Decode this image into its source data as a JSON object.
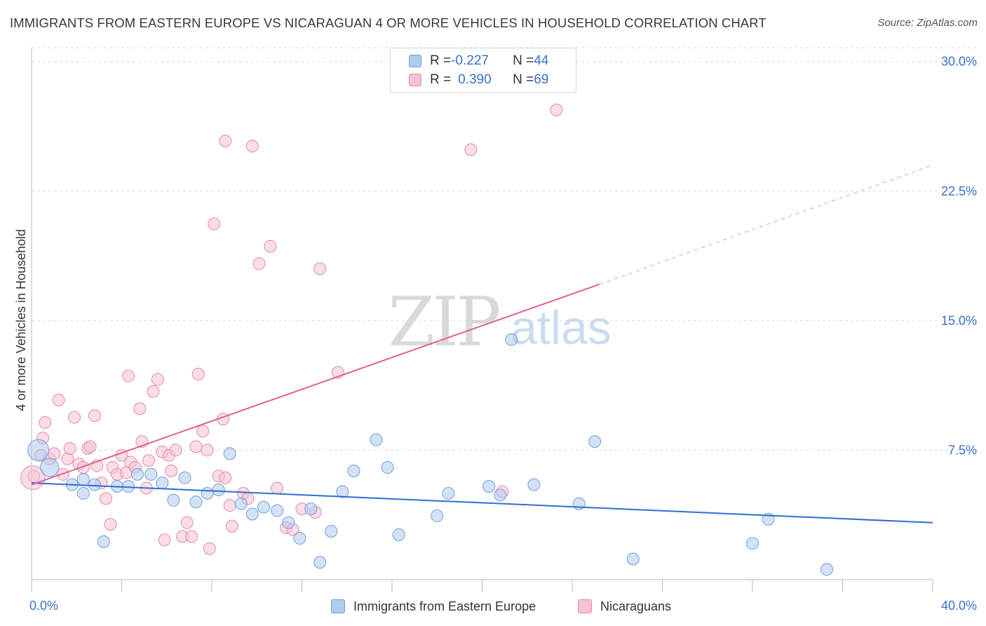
{
  "header": {
    "title": "IMMIGRANTS FROM EASTERN EUROPE VS NICARAGUAN 4 OR MORE VEHICLES IN HOUSEHOLD CORRELATION CHART",
    "source": "Source: ZipAtlas.com"
  },
  "watermark": {
    "zip": "ZIP",
    "atlas": "atlas"
  },
  "colors": {
    "blue_fill": "#aecbf0",
    "blue_stroke": "#6f9fdc",
    "blue_line": "#2f6fcc",
    "pink_fill": "#f7c1d1",
    "pink_stroke": "#e48aa8",
    "pink_line": "#e0618e",
    "tick_label": "#3a72c9",
    "grid": "#dcdcdc"
  },
  "legend": {
    "rows": [
      {
        "r_label": "R = ",
        "r_value": "-0.227",
        "n_label": "N = ",
        "n_value": "44"
      },
      {
        "r_label": "R = ",
        "r_value": "0.390",
        "n_label": "N = ",
        "n_value": "69"
      }
    ]
  },
  "chart_data": {
    "type": "scatter",
    "title": "IMMIGRANTS FROM EASTERN EUROPE VS NICARAGUAN 4 OR MORE VEHICLES IN HOUSEHOLD CORRELATION CHART",
    "xlabel": "",
    "ylabel": "4 or more Vehicles in Household",
    "xlim": [
      0,
      40
    ],
    "ylim": [
      0,
      30.8
    ],
    "x_tick_labels": [
      "0.0%",
      "40.0%"
    ],
    "y_ticks": [
      7.5,
      15.0,
      22.5,
      30.0
    ],
    "y_tick_labels": [
      "7.5%",
      "15.0%",
      "22.5%",
      "30.0%"
    ],
    "grid": true,
    "legend_position": "top-center",
    "series": [
      {
        "name": "Immigrants from Eastern Europe",
        "R": -0.227,
        "N": 44,
        "trend": {
          "x0": 0,
          "y0": 5.6,
          "x1": 40,
          "y1": 3.3
        },
        "points": [
          [
            0.3,
            7.5
          ],
          [
            0.8,
            6.5
          ],
          [
            2.3,
            5.8
          ],
          [
            1.8,
            5.5
          ],
          [
            2.3,
            5.0
          ],
          [
            3.2,
            2.2
          ],
          [
            2.8,
            5.5
          ],
          [
            3.8,
            5.4
          ],
          [
            4.3,
            5.4
          ],
          [
            4.7,
            6.1
          ],
          [
            5.3,
            6.1
          ],
          [
            5.8,
            5.6
          ],
          [
            6.3,
            4.6
          ],
          [
            6.8,
            5.9
          ],
          [
            7.3,
            4.5
          ],
          [
            7.8,
            5.0
          ],
          [
            8.3,
            5.2
          ],
          [
            8.8,
            7.3
          ],
          [
            9.3,
            4.4
          ],
          [
            9.8,
            3.8
          ],
          [
            10.3,
            4.2
          ],
          [
            10.9,
            4.0
          ],
          [
            11.4,
            3.3
          ],
          [
            11.9,
            2.4
          ],
          [
            12.4,
            4.1
          ],
          [
            12.8,
            1.0
          ],
          [
            13.3,
            2.8
          ],
          [
            13.8,
            5.1
          ],
          [
            14.3,
            6.3
          ],
          [
            15.3,
            8.1
          ],
          [
            15.8,
            6.5
          ],
          [
            16.3,
            2.6
          ],
          [
            18.0,
            3.7
          ],
          [
            18.5,
            5.0
          ],
          [
            20.3,
            5.4
          ],
          [
            20.8,
            4.9
          ],
          [
            21.3,
            13.9
          ],
          [
            22.3,
            5.5
          ],
          [
            24.3,
            4.4
          ],
          [
            25.0,
            8.0
          ],
          [
            26.7,
            1.2
          ],
          [
            32.0,
            2.1
          ],
          [
            32.7,
            3.5
          ],
          [
            35.3,
            0.6
          ]
        ]
      },
      {
        "name": "Nicaraguans",
        "R": 0.39,
        "N": 69,
        "trend": {
          "x0": 0,
          "y0": 5.5,
          "x1": 25.2,
          "y1": 17.1
        },
        "trend_extension": {
          "x0": 25.2,
          "y0": 17.1,
          "x1": 40,
          "y1": 24.0
        },
        "points": [
          [
            0.1,
            6.0
          ],
          [
            0.4,
            7.2
          ],
          [
            0.5,
            8.2
          ],
          [
            0.6,
            9.1
          ],
          [
            0.8,
            7.0
          ],
          [
            1.0,
            7.3
          ],
          [
            1.2,
            10.4
          ],
          [
            1.4,
            6.1
          ],
          [
            1.6,
            7.0
          ],
          [
            1.7,
            7.6
          ],
          [
            1.9,
            9.4
          ],
          [
            2.1,
            6.7
          ],
          [
            2.3,
            6.5
          ],
          [
            2.5,
            7.6
          ],
          [
            2.6,
            7.7
          ],
          [
            2.8,
            9.5
          ],
          [
            2.9,
            6.6
          ],
          [
            3.1,
            5.6
          ],
          [
            3.3,
            4.7
          ],
          [
            3.5,
            3.2
          ],
          [
            3.6,
            6.5
          ],
          [
            3.8,
            6.1
          ],
          [
            4.0,
            7.2
          ],
          [
            4.2,
            6.2
          ],
          [
            4.3,
            11.8
          ],
          [
            4.4,
            6.8
          ],
          [
            4.6,
            6.5
          ],
          [
            4.8,
            9.9
          ],
          [
            4.9,
            8.0
          ],
          [
            5.1,
            5.3
          ],
          [
            5.2,
            6.9
          ],
          [
            5.4,
            10.9
          ],
          [
            5.6,
            11.6
          ],
          [
            5.8,
            7.4
          ],
          [
            5.9,
            2.3
          ],
          [
            6.1,
            7.2
          ],
          [
            6.2,
            6.3
          ],
          [
            6.4,
            7.5
          ],
          [
            6.7,
            2.5
          ],
          [
            6.9,
            3.3
          ],
          [
            7.1,
            2.5
          ],
          [
            7.3,
            7.7
          ],
          [
            7.4,
            11.9
          ],
          [
            7.6,
            8.6
          ],
          [
            7.8,
            7.5
          ],
          [
            7.9,
            1.8
          ],
          [
            8.1,
            20.6
          ],
          [
            8.3,
            6.0
          ],
          [
            8.5,
            9.3
          ],
          [
            8.6,
            5.9
          ],
          [
            8.8,
            4.3
          ],
          [
            8.9,
            3.1
          ],
          [
            8.6,
            25.4
          ],
          [
            9.4,
            5.0
          ],
          [
            9.6,
            4.7
          ],
          [
            10.1,
            18.3
          ],
          [
            9.8,
            25.1
          ],
          [
            10.6,
            19.3
          ],
          [
            10.9,
            5.3
          ],
          [
            11.3,
            3.0
          ],
          [
            11.6,
            2.9
          ],
          [
            12.0,
            4.1
          ],
          [
            12.6,
            3.9
          ],
          [
            12.8,
            18.0
          ],
          [
            13.6,
            12.0
          ],
          [
            19.5,
            24.9
          ],
          [
            20.9,
            5.1
          ],
          [
            23.3,
            27.2
          ],
          [
            0.05,
            5.9
          ]
        ]
      }
    ]
  },
  "bottom_legend": {
    "items": [
      "Immigrants from Eastern Europe",
      "Nicaraguans"
    ]
  }
}
